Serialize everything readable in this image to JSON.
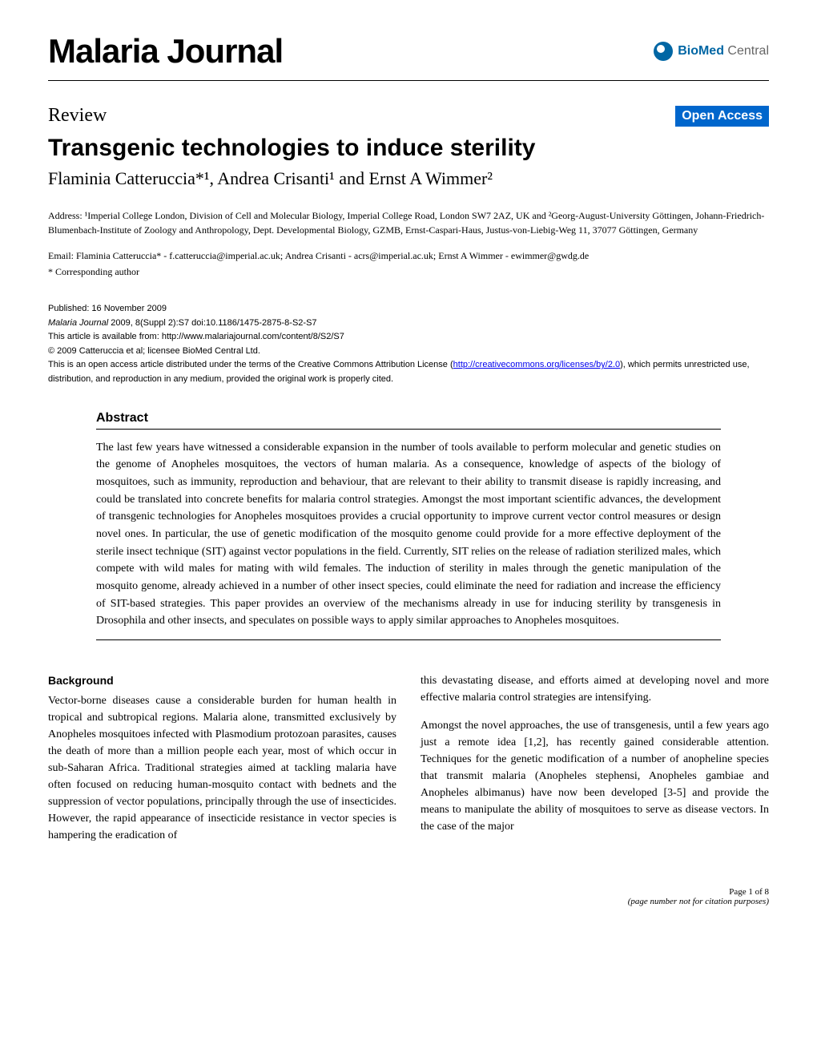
{
  "journal_name": "Malaria Journal",
  "logo": {
    "biomed": "BioMed",
    "central": " Central",
    "circle_color": "#0066a4"
  },
  "article_type": "Review",
  "open_access_badge": "Open Access",
  "title": "Transgenic technologies to induce sterility",
  "authors": "Flaminia Catteruccia*¹, Andrea Crisanti¹ and Ernst A Wimmer²",
  "affiliations": "Address: ¹Imperial College London, Division of Cell and Molecular Biology, Imperial College Road, London SW7 2AZ, UK and ²Georg-August-University Göttingen, Johann-Friedrich-Blumenbach-Institute of Zoology and Anthropology, Dept. Developmental Biology, GZMB, Ernst-Caspari-Haus, Justus-von-Liebig-Weg 11, 37077 Göttingen, Germany",
  "emails": "Email: Flaminia Catteruccia* - f.catteruccia@imperial.ac.uk; Andrea Crisanti - acrs@imperial.ac.uk; Ernst A Wimmer - ewimmer@gwdg.de",
  "corresponding": "* Corresponding author",
  "published": "Published: 16 November 2009",
  "citation_italic": "Malaria Journal",
  "citation_rest": " 2009, 8(Suppl 2):S7    doi:10.1186/1475-2875-8-S2-S7",
  "available_from": "This article is available from: http://www.malariajournal.com/content/8/S2/S7",
  "copyright": "© 2009 Catteruccia et al; licensee BioMed Central Ltd.",
  "license_pre": "This is an open access article distributed under the terms of the Creative Commons Attribution License (",
  "license_link": "http://creativecommons.org/licenses/by/2.0",
  "license_post": "), which permits unrestricted use, distribution, and reproduction in any medium, provided the original work is properly cited.",
  "abstract_heading": "Abstract",
  "abstract_text": "The last few years have witnessed a considerable expansion in the number of tools available to perform molecular and genetic studies on the genome of Anopheles mosquitoes, the vectors of human malaria. As a consequence, knowledge of aspects of the biology of mosquitoes, such as immunity, reproduction and behaviour, that are relevant to their ability to transmit disease is rapidly increasing, and could be translated into concrete benefits for malaria control strategies. Amongst the most important scientific advances, the development of transgenic technologies for Anopheles mosquitoes provides a crucial opportunity to improve current vector control measures or design novel ones. In particular, the use of genetic modification of the mosquito genome could provide for a more effective deployment of the sterile insect technique (SIT) against vector populations in the field. Currently, SIT relies on the release of radiation sterilized males, which compete with wild males for mating with wild females. The induction of sterility in males through the genetic manipulation of the mosquito genome, already achieved in a number of other insect species, could eliminate the need for radiation and increase the efficiency of SIT-based strategies. This paper provides an overview of the mechanisms already in use for inducing sterility by transgenesis in Drosophila and other insects, and speculates on possible ways to apply similar approaches to Anopheles mosquitoes.",
  "background_heading": "Background",
  "col1_para1": "Vector-borne diseases cause a considerable burden for human health in tropical and subtropical regions. Malaria alone, transmitted exclusively by Anopheles mosquitoes infected with Plasmodium protozoan parasites, causes the death of more than a million people each year, most of which occur in sub-Saharan Africa. Traditional strategies aimed at tackling malaria have often focused on reducing human-mosquito contact with bednets and the suppression of vector populations, principally through the use of insecticides. However, the rapid appearance of insecticide resistance in vector species is hampering the eradication of",
  "col2_para1": "this devastating disease, and efforts aimed at developing novel and more effective malaria control strategies are intensifying.",
  "col2_para2": "Amongst the novel approaches, the use of transgenesis, until a few years ago just a remote idea [1,2], has recently gained considerable attention. Techniques for the genetic modification of a number of anopheline species that transmit malaria (Anopheles stephensi, Anopheles gambiae and Anopheles albimanus) have now been developed [3-5] and provide the means to manipulate the ability of mosquitoes to serve as disease vectors. In the case of the major",
  "footer_page": "Page 1 of 8",
  "footer_note": "(page number not for citation purposes)",
  "colors": {
    "open_access_bg": "#0066cc",
    "open_access_fg": "#ffffff",
    "link_color": "#0000ee",
    "text_color": "#000000",
    "rule_color": "#000000",
    "biomed_gray": "#666666"
  }
}
